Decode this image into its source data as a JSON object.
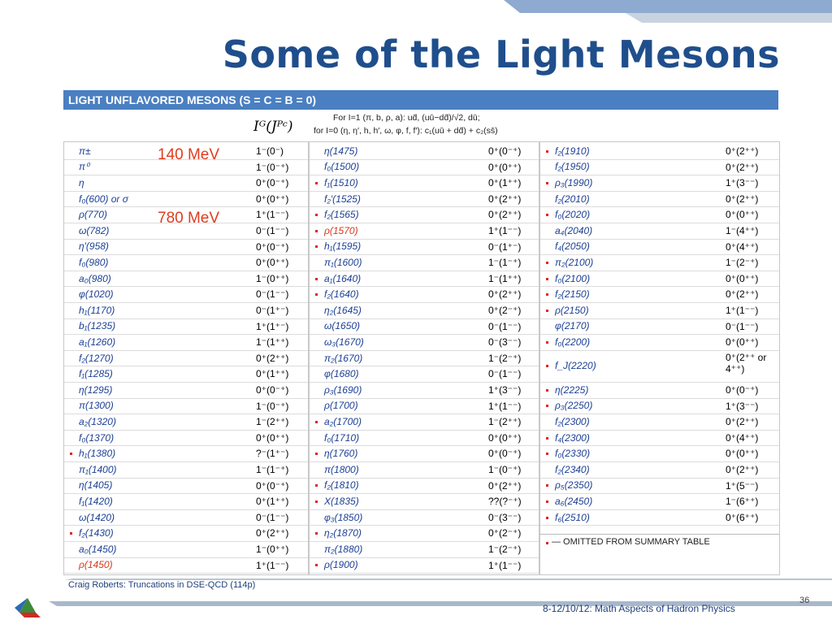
{
  "title": "Some of the Light Mesons",
  "table": {
    "header": "LIGHT UNFLAVORED MESONS (S = C = B = 0)",
    "quark_note": [
      "For I=1 (π, b, ρ, a):  ud̄, (uū−dd̄)/√2, dū;",
      "for I=0 (η, η′, h, h′, ω, φ, f, f′):  c₁(uū + dd̄) + c₂(ss̄)"
    ],
    "qn_label": "Iᴳ(Jᴾᶜ)",
    "columns": [
      [
        {
          "name": "π±",
          "qn": "1⁻(0⁻)"
        },
        {
          "name": "π⁰",
          "qn": "1⁻(0⁻⁺)"
        },
        {
          "name": "η",
          "qn": "0⁺(0⁻⁺)"
        },
        {
          "name": "f₀(600) or σ",
          "qn": "0⁺(0⁺⁺)"
        },
        {
          "name": "ρ(770)",
          "qn": "1⁺(1⁻⁻)"
        },
        {
          "name": "ω(782)",
          "qn": "0⁻(1⁻⁻)"
        },
        {
          "name": "η′(958)",
          "qn": "0⁺(0⁻⁺)"
        },
        {
          "name": "f₀(980)",
          "qn": "0⁺(0⁺⁺)"
        },
        {
          "name": "a₀(980)",
          "qn": "1⁻(0⁺⁺)"
        },
        {
          "name": "φ(1020)",
          "qn": "0⁻(1⁻⁻)"
        },
        {
          "name": "h₁(1170)",
          "qn": "0⁻(1⁺⁻)"
        },
        {
          "name": "b₁(1235)",
          "qn": "1⁺(1⁺⁻)"
        },
        {
          "name": "a₁(1260)",
          "qn": "1⁻(1⁺⁺)"
        },
        {
          "name": "f₂(1270)",
          "qn": "0⁺(2⁺⁺)"
        },
        {
          "name": "f₁(1285)",
          "qn": "0⁺(1⁺⁺)"
        },
        {
          "name": "η(1295)",
          "qn": "0⁺(0⁻⁺)"
        },
        {
          "name": "π(1300)",
          "qn": "1⁻(0⁻⁺)"
        },
        {
          "name": "a₂(1320)",
          "qn": "1⁻(2⁺⁺)"
        },
        {
          "name": "f₀(1370)",
          "qn": "0⁺(0⁺⁺)"
        },
        {
          "name": "h₁(1380)",
          "qn": "?⁻(1⁺⁻)",
          "omitted": true
        },
        {
          "name": "π₁(1400)",
          "qn": "1⁻(1⁻⁺)"
        },
        {
          "name": "η(1405)",
          "qn": "0⁺(0⁻⁺)"
        },
        {
          "name": "f₁(1420)",
          "qn": "0⁺(1⁺⁺)"
        },
        {
          "name": "ω(1420)",
          "qn": "0⁻(1⁻⁻)"
        },
        {
          "name": "f₂(1430)",
          "qn": "0⁺(2⁺⁺)",
          "omitted": true
        },
        {
          "name": "a₀(1450)",
          "qn": "1⁻(0⁺⁺)"
        },
        {
          "name": "ρ(1450)",
          "qn": "1⁺(1⁻⁻)",
          "highlight": true
        }
      ],
      [
        {
          "name": "η(1475)",
          "qn": "0⁺(0⁻⁺)"
        },
        {
          "name": "f₀(1500)",
          "qn": "0⁺(0⁺⁺)"
        },
        {
          "name": "f₁(1510)",
          "qn": "0⁺(1⁺⁺)",
          "omitted": true
        },
        {
          "name": "f₂′(1525)",
          "qn": "0⁺(2⁺⁺)"
        },
        {
          "name": "f₂(1565)",
          "qn": "0⁺(2⁺⁺)",
          "omitted": true
        },
        {
          "name": "ρ(1570)",
          "qn": "1⁺(1⁻⁻)",
          "omitted": true,
          "highlight": true
        },
        {
          "name": "h₁(1595)",
          "qn": "0⁻(1⁺⁻)",
          "omitted": true
        },
        {
          "name": "π₁(1600)",
          "qn": "1⁻(1⁻⁺)"
        },
        {
          "name": "a₁(1640)",
          "qn": "1⁻(1⁺⁺)",
          "omitted": true
        },
        {
          "name": "f₂(1640)",
          "qn": "0⁺(2⁺⁺)",
          "omitted": true
        },
        {
          "name": "η₂(1645)",
          "qn": "0⁺(2⁻⁺)"
        },
        {
          "name": "ω(1650)",
          "qn": "0⁻(1⁻⁻)"
        },
        {
          "name": "ω₃(1670)",
          "qn": "0⁻(3⁻⁻)"
        },
        {
          "name": "π₂(1670)",
          "qn": "1⁻(2⁻⁺)"
        },
        {
          "name": "φ(1680)",
          "qn": "0⁻(1⁻⁻)"
        },
        {
          "name": "ρ₃(1690)",
          "qn": "1⁺(3⁻⁻)"
        },
        {
          "name": "ρ(1700)",
          "qn": "1⁺(1⁻⁻)"
        },
        {
          "name": "a₂(1700)",
          "qn": "1⁻(2⁺⁺)",
          "omitted": true
        },
        {
          "name": "f₀(1710)",
          "qn": "0⁺(0⁺⁺)"
        },
        {
          "name": "η(1760)",
          "qn": "0⁺(0⁻⁺)",
          "omitted": true
        },
        {
          "name": "π(1800)",
          "qn": "1⁻(0⁻⁺)"
        },
        {
          "name": "f₂(1810)",
          "qn": "0⁺(2⁺⁺)",
          "omitted": true
        },
        {
          "name": "X(1835)",
          "qn": "??(?⁻⁺)",
          "omitted": true
        },
        {
          "name": "φ₃(1850)",
          "qn": "0⁻(3⁻⁻)"
        },
        {
          "name": "η₂(1870)",
          "qn": "0⁺(2⁻⁺)",
          "omitted": true
        },
        {
          "name": "π₂(1880)",
          "qn": "1⁻(2⁻⁺)"
        },
        {
          "name": "ρ(1900)",
          "qn": "1⁺(1⁻⁻)",
          "omitted": true
        }
      ],
      [
        {
          "name": "f₂(1910)",
          "qn": "0⁺(2⁺⁺)",
          "omitted": true
        },
        {
          "name": "f₂(1950)",
          "qn": "0⁺(2⁺⁺)"
        },
        {
          "name": "ρ₃(1990)",
          "qn": "1⁺(3⁻⁻)",
          "omitted": true
        },
        {
          "name": "f₂(2010)",
          "qn": "0⁺(2⁺⁺)"
        },
        {
          "name": "f₀(2020)",
          "qn": "0⁺(0⁺⁺)",
          "omitted": true
        },
        {
          "name": "a₄(2040)",
          "qn": "1⁻(4⁺⁺)"
        },
        {
          "name": "f₄(2050)",
          "qn": "0⁺(4⁺⁺)"
        },
        {
          "name": "π₂(2100)",
          "qn": "1⁻(2⁻⁺)",
          "omitted": true
        },
        {
          "name": "f₀(2100)",
          "qn": "0⁺(0⁺⁺)",
          "omitted": true
        },
        {
          "name": "f₂(2150)",
          "qn": "0⁺(2⁺⁺)",
          "omitted": true
        },
        {
          "name": "ρ(2150)",
          "qn": "1⁺(1⁻⁻)",
          "omitted": true
        },
        {
          "name": "φ(2170)",
          "qn": "0⁻(1⁻⁻)"
        },
        {
          "name": "f₀(2200)",
          "qn": "0⁺(0⁺⁺)",
          "omitted": true
        },
        {
          "name": "f_J(2220)",
          "qn": "0⁺(2⁺⁺ or 4⁺⁺)",
          "omitted": true
        },
        {
          "name": "η(2225)",
          "qn": "0⁺(0⁻⁺)",
          "omitted": true
        },
        {
          "name": "ρ₃(2250)",
          "qn": "1⁺(3⁻⁻)",
          "omitted": true
        },
        {
          "name": "f₂(2300)",
          "qn": "0⁺(2⁺⁺)"
        },
        {
          "name": "f₄(2300)",
          "qn": "0⁺(4⁺⁺)",
          "omitted": true
        },
        {
          "name": "f₀(2330)",
          "qn": "0⁺(0⁺⁺)",
          "omitted": true
        },
        {
          "name": "f₂(2340)",
          "qn": "0⁺(2⁺⁺)"
        },
        {
          "name": "ρ₅(2350)",
          "qn": "1⁺(5⁻⁻)",
          "omitted": true
        },
        {
          "name": "a₆(2450)",
          "qn": "1⁻(6⁺⁺)",
          "omitted": true
        },
        {
          "name": "f₆(2510)",
          "qn": "0⁺(6⁺⁺)",
          "omitted": true
        }
      ]
    ],
    "omitted_note": "— OMITTED FROM SUMMARY TABLE"
  },
  "annotations": [
    "140 MeV",
    "780 MeV"
  ],
  "footer": {
    "source": "Craig Roberts: Truncations in DSE-QCD (114p)",
    "event": "8-12/10/12: Math Aspects of Hadron Physics",
    "page": "36"
  }
}
